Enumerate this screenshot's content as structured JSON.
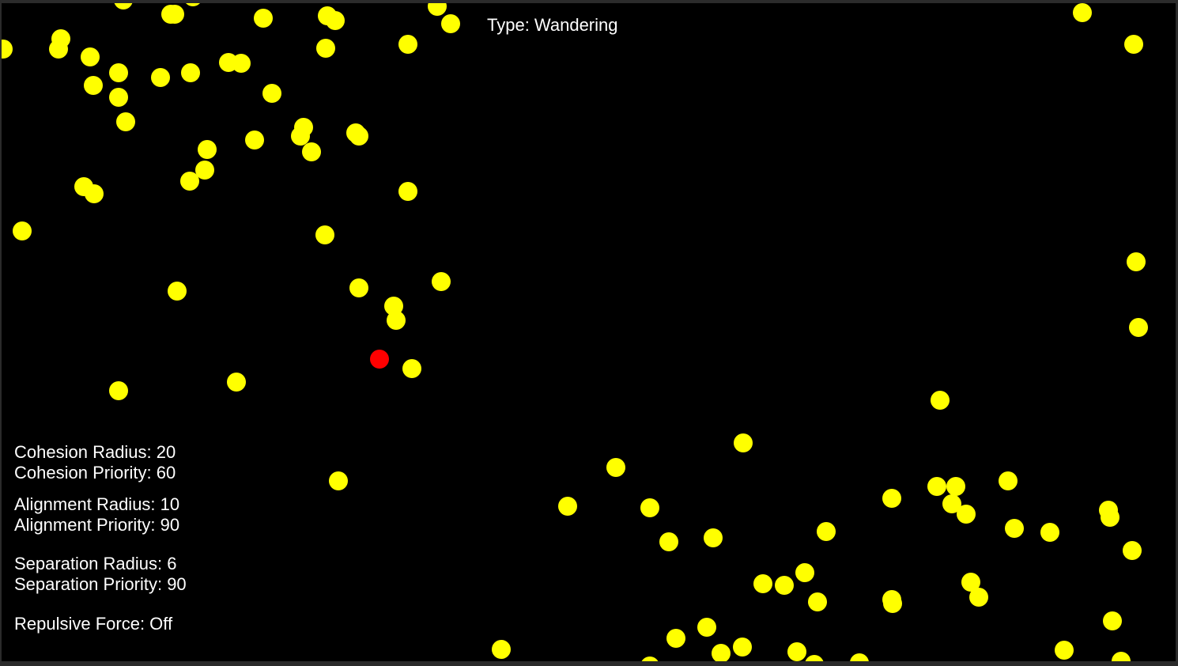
{
  "hud": {
    "type": "Type: Wandering",
    "cohesion_radius": "Cohesion Radius: 20",
    "cohesion_priority": "Cohesion Priority: 60",
    "alignment_radius": "Alignment Radius: 10",
    "alignment_priority": "Alignment Priority: 90",
    "separation_radius": "Separation Radius: 6",
    "separation_priority": "Separation Priority: 90",
    "repulsive_force": "Repulsive Force:  Off"
  },
  "colors": {
    "background": "#000000",
    "frame": "#2b2b2b",
    "boid": "#ffff00",
    "leader": "#ff0000",
    "text": "#ffffff"
  }
}
